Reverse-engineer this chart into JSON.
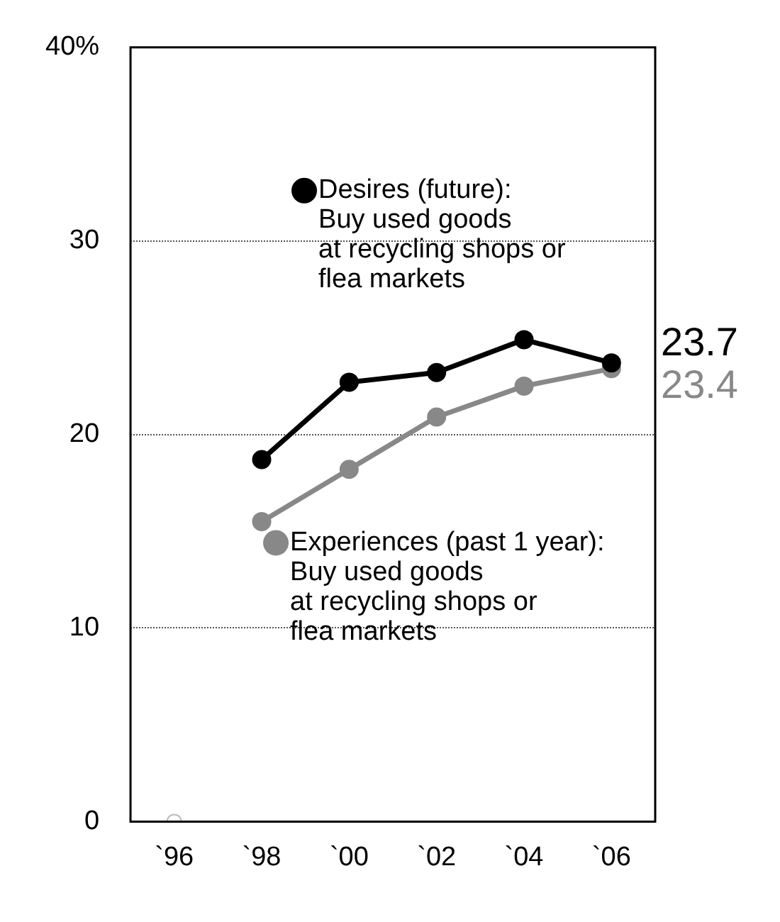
{
  "chart_data": {
    "type": "line",
    "categories": [
      "`96",
      "`98",
      "`00",
      "`02",
      "`04",
      "`06"
    ],
    "series": [
      {
        "name": "Desires (future):\nBuy used goods\nat recycling shops or\nflea markets",
        "color": "#000000",
        "values": [
          null,
          18.7,
          22.7,
          23.2,
          24.9,
          23.7
        ],
        "value_labels": [
          null,
          null,
          null,
          null,
          null,
          "23.7"
        ]
      },
      {
        "name": "Experiences (past 1 year):\nBuy used goods\nat recycling shops or\nflea markets",
        "color": "#888888",
        "values": [
          null,
          15.5,
          18.2,
          20.9,
          22.5,
          23.4
        ],
        "value_labels": [
          null,
          null,
          null,
          null,
          null,
          "23.4"
        ]
      },
      {
        "type": "scatter",
        "color": "#bbbbbb",
        "values": [
          0,
          null,
          null,
          null,
          null,
          null
        ]
      }
    ],
    "ylim": [
      0,
      40
    ],
    "yticks": [
      0,
      10,
      20,
      30,
      {
        "value": 40,
        "label": "40%"
      }
    ],
    "grid": "y",
    "legend": "center",
    "marker": "circle",
    "line_style": "solid"
  }
}
